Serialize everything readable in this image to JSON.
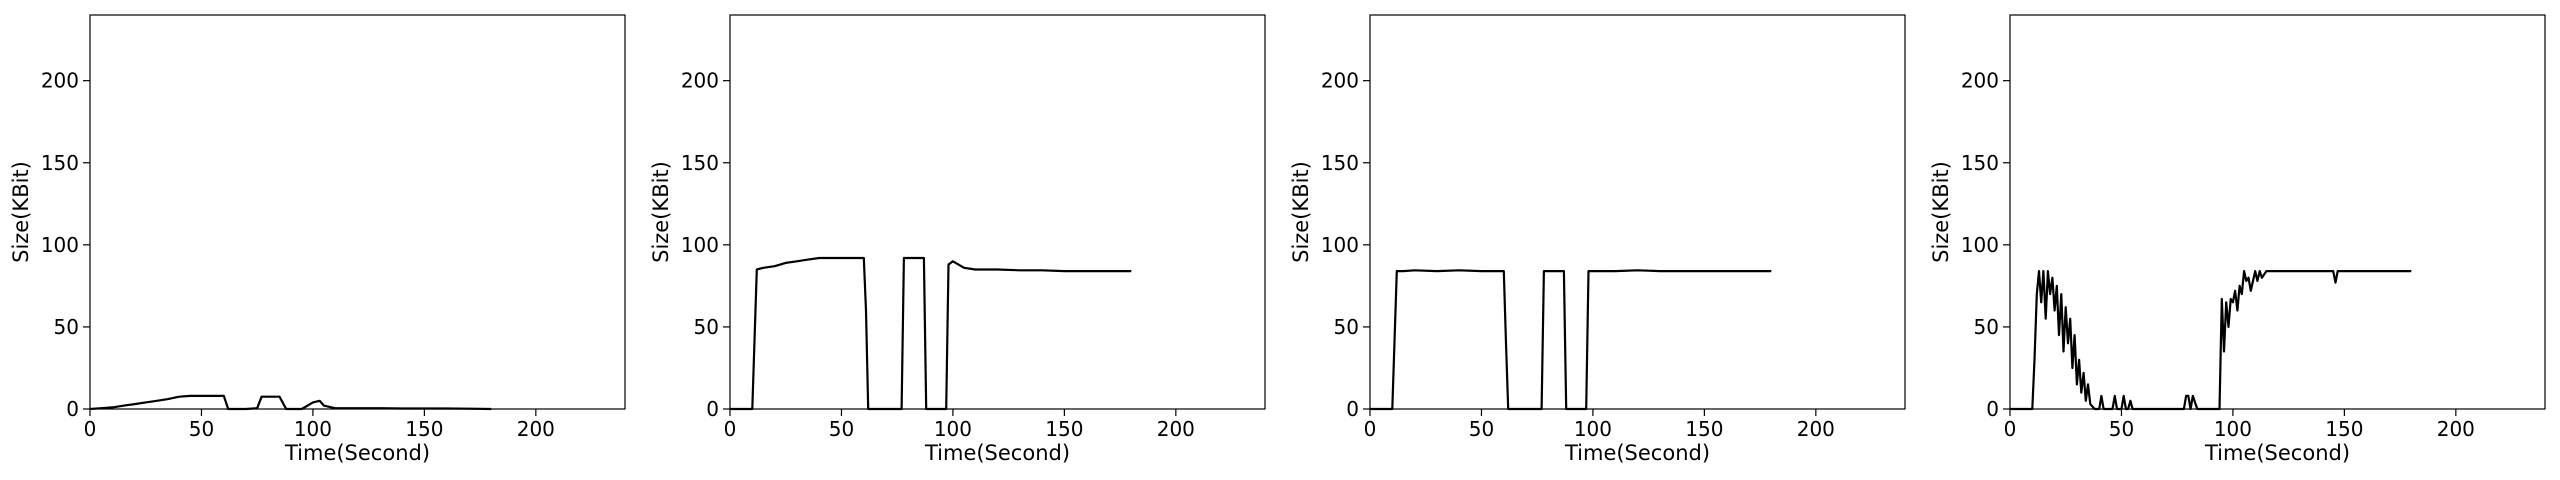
{
  "chart_data": [
    {
      "type": "line",
      "xlabel": "Time(Second)",
      "ylabel": "Size(KBit)",
      "xlim": [
        0,
        240
      ],
      "ylim": [
        0,
        240
      ],
      "xticks": [
        0,
        50,
        100,
        150,
        200
      ],
      "yticks": [
        0,
        50,
        100,
        150,
        200
      ],
      "grid": false,
      "series": [
        {
          "color": "#000000",
          "x": [
            0,
            5,
            10,
            15,
            20,
            25,
            30,
            35,
            40,
            45,
            50,
            55,
            60,
            62,
            65,
            70,
            75,
            77,
            80,
            85,
            88,
            90,
            95,
            100,
            103,
            105,
            110,
            120,
            130,
            140,
            150,
            160,
            170,
            180
          ],
          "y": [
            0,
            0.5,
            1,
            2,
            3,
            4,
            5,
            6,
            7.5,
            8,
            8,
            8,
            8,
            0,
            0,
            0,
            0.5,
            7.5,
            7.5,
            7.5,
            0,
            0,
            0,
            4,
            5,
            2,
            0.5,
            0.5,
            0.5,
            0.3,
            0.3,
            0.3,
            0.2,
            0
          ]
        }
      ]
    },
    {
      "type": "line",
      "xlabel": "Time(Second)",
      "ylabel": "Size(KBit)",
      "xlim": [
        0,
        240
      ],
      "ylim": [
        0,
        240
      ],
      "xticks": [
        0,
        50,
        100,
        150,
        200
      ],
      "yticks": [
        0,
        50,
        100,
        150,
        200
      ],
      "grid": false,
      "series": [
        {
          "color": "#000000",
          "x": [
            0,
            5,
            8,
            10,
            12,
            15,
            20,
            25,
            30,
            35,
            40,
            45,
            50,
            55,
            60,
            61,
            62,
            65,
            70,
            75,
            77,
            78,
            80,
            85,
            87,
            88,
            90,
            95,
            97,
            98,
            100,
            105,
            110,
            120,
            130,
            140,
            150,
            160,
            170,
            180
          ],
          "y": [
            0,
            0,
            0,
            0,
            85,
            86,
            87,
            89,
            90,
            91,
            92,
            92,
            92,
            92,
            92,
            60,
            0,
            0,
            0,
            0,
            0,
            92,
            92,
            92,
            92,
            0,
            0,
            0,
            0,
            88,
            90,
            86,
            85,
            85,
            84.5,
            84.5,
            84,
            84,
            84,
            84
          ]
        }
      ]
    },
    {
      "type": "line",
      "xlabel": "Time(Second)",
      "ylabel": "Size(KBit)",
      "xlim": [
        0,
        240
      ],
      "ylim": [
        0,
        240
      ],
      "xticks": [
        0,
        50,
        100,
        150,
        200
      ],
      "yticks": [
        0,
        50,
        100,
        150,
        200
      ],
      "grid": false,
      "series": [
        {
          "color": "#000000",
          "x": [
            0,
            5,
            8,
            10,
            12,
            15,
            20,
            30,
            40,
            50,
            60,
            61,
            62,
            65,
            70,
            75,
            77,
            78,
            80,
            85,
            87,
            88,
            90,
            95,
            97,
            98,
            100,
            110,
            120,
            130,
            140,
            150,
            160,
            170,
            180
          ],
          "y": [
            0,
            0,
            0,
            0,
            84,
            84,
            84.5,
            84,
            84.5,
            84,
            84,
            40,
            0,
            0,
            0,
            0,
            0,
            84,
            84,
            84,
            84,
            0,
            0,
            0,
            0,
            84,
            84,
            84,
            84.5,
            84,
            84,
            84,
            84,
            84,
            84
          ]
        }
      ]
    },
    {
      "type": "line",
      "xlabel": "Time(Second)",
      "ylabel": "Size(KBit)",
      "xlim": [
        0,
        240
      ],
      "ylim": [
        0,
        240
      ],
      "xticks": [
        0,
        50,
        100,
        150,
        200
      ],
      "yticks": [
        0,
        50,
        100,
        150,
        200
      ],
      "grid": false,
      "series": [
        {
          "color": "#000000",
          "x": [
            0,
            5,
            10,
            11,
            12,
            13,
            14,
            15,
            16,
            17,
            18,
            19,
            20,
            21,
            22,
            23,
            24,
            25,
            26,
            27,
            28,
            29,
            30,
            31,
            32,
            33,
            34,
            35,
            36,
            38,
            40,
            41,
            42,
            44,
            46,
            47,
            48,
            50,
            51,
            52,
            53,
            54,
            55,
            56,
            58,
            60,
            65,
            70,
            75,
            78,
            79,
            80,
            81,
            82,
            84,
            86,
            90,
            94,
            95,
            96,
            97,
            98,
            99,
            100,
            101,
            102,
            103,
            104,
            105,
            106,
            107,
            108,
            110,
            111,
            112,
            113,
            115,
            118,
            120,
            125,
            130,
            140,
            145,
            146,
            147,
            150,
            160,
            170,
            180
          ],
          "y": [
            0,
            0,
            0,
            30,
            70,
            84,
            65,
            84,
            55,
            84,
            70,
            80,
            60,
            75,
            45,
            70,
            35,
            62,
            40,
            55,
            25,
            45,
            15,
            30,
            10,
            22,
            5,
            15,
            3,
            0,
            0,
            8,
            0,
            0,
            0,
            8,
            0,
            0,
            8,
            0,
            0,
            5,
            0,
            0,
            0,
            0,
            0,
            0,
            0,
            0,
            8,
            8,
            0,
            8,
            0,
            0,
            0,
            0,
            67,
            35,
            65,
            50,
            67,
            65,
            72,
            60,
            75,
            70,
            84,
            78,
            80,
            72,
            84,
            78,
            84,
            80,
            84,
            84,
            84,
            84,
            84,
            84,
            84,
            77,
            84,
            84,
            84,
            84,
            84
          ]
        }
      ]
    }
  ]
}
